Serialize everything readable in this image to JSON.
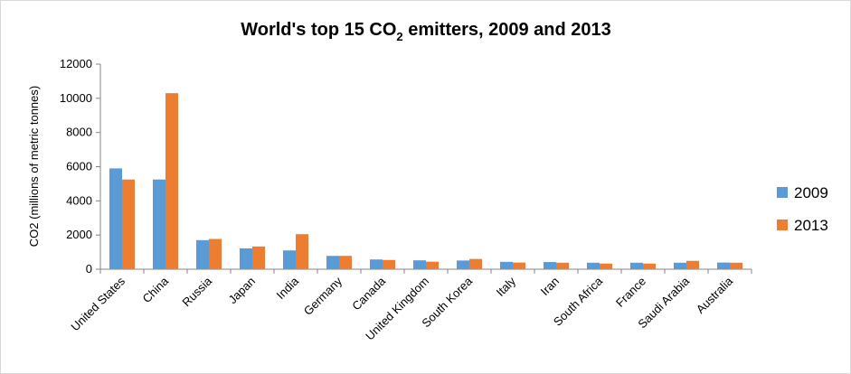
{
  "chart_data": {
    "type": "bar",
    "title": "World's top 15 CO2 emitters, 2009 and 2013",
    "title_main": "World's top 15 CO",
    "title_sub": "2",
    "title_rest": " emitters, 2009 and 2013",
    "xlabel": "",
    "ylabel": "CO2 (millions of metric tonnes)",
    "ylim": [
      0,
      12000
    ],
    "yticks": [
      0,
      2000,
      4000,
      6000,
      8000,
      10000,
      12000
    ],
    "grid": false,
    "legend_position": "right",
    "categories": [
      "United States",
      "China",
      "Russia",
      "Japan",
      "India",
      "Germany",
      "Canada",
      "United Kingdom",
      "South Korea",
      "Italy",
      "Iran",
      "South Africa",
      "France",
      "Saudi Arabia",
      "Australia"
    ],
    "series": [
      {
        "name": "2009",
        "color": "#5b9bd5",
        "values": [
          5900,
          5250,
          1700,
          1220,
          1100,
          780,
          570,
          520,
          510,
          430,
          420,
          380,
          380,
          380,
          390
        ]
      },
      {
        "name": "2013",
        "color": "#ed7d31",
        "values": [
          5250,
          10300,
          1770,
          1330,
          2050,
          780,
          540,
          440,
          600,
          390,
          380,
          330,
          330,
          490,
          380
        ]
      }
    ]
  }
}
